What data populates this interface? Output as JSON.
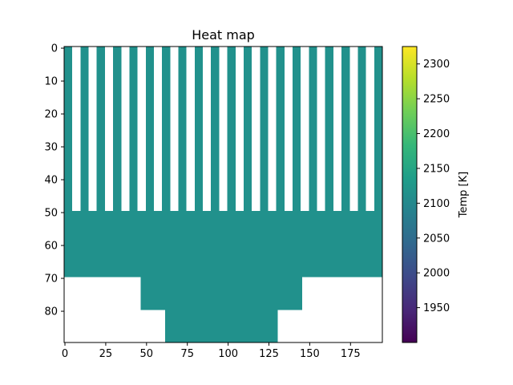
{
  "chart_data": {
    "type": "heatmap",
    "title": "Heat map",
    "xlabel": "",
    "ylabel": "",
    "x_range": [
      -0.5,
      194.5
    ],
    "y_range": [
      89.5,
      -0.5
    ],
    "x_ticks": [
      0,
      25,
      50,
      75,
      100,
      125,
      150,
      175
    ],
    "y_ticks": [
      0,
      10,
      20,
      30,
      40,
      50,
      60,
      70,
      80
    ],
    "colormap": "viridis",
    "background_color": "#ffffff",
    "cell_value": 2110,
    "cell_color": "#21918c",
    "colorbar": {
      "label": "Temp [K]",
      "range": [
        1900,
        2325
      ],
      "ticks": [
        1950,
        2000,
        2050,
        2100,
        2150,
        2200,
        2250,
        2300
      ]
    },
    "regions": [
      {
        "rows": [
          -0.5,
          49.5
        ],
        "description": "vertical stripes",
        "stripe_columns": [
          [
            -0.5,
            4.5
          ],
          [
            9.5,
            14.5
          ],
          [
            19.5,
            24.5
          ],
          [
            29.5,
            34.5
          ],
          [
            39.5,
            44.5
          ],
          [
            49.5,
            54.5
          ],
          [
            59.5,
            64.5
          ],
          [
            69.5,
            74.5
          ],
          [
            79.5,
            84.5
          ],
          [
            89.5,
            94.5
          ],
          [
            99.5,
            104.5
          ],
          [
            109.5,
            114.5
          ],
          [
            119.5,
            124.5
          ],
          [
            129.5,
            134.5
          ],
          [
            139.5,
            144.5
          ],
          [
            149.5,
            154.5
          ],
          [
            159.5,
            164.5
          ],
          [
            169.5,
            174.5
          ],
          [
            179.5,
            184.5
          ],
          [
            189.5,
            194.5
          ]
        ]
      },
      {
        "rows": [
          49.5,
          69.5
        ],
        "cols": [
          -0.5,
          194.5
        ]
      },
      {
        "rows": [
          69.5,
          79.5
        ],
        "cols": [
          46.5,
          145.5
        ]
      },
      {
        "rows": [
          79.5,
          89.5
        ],
        "cols": [
          61.5,
          130.5
        ]
      }
    ]
  }
}
